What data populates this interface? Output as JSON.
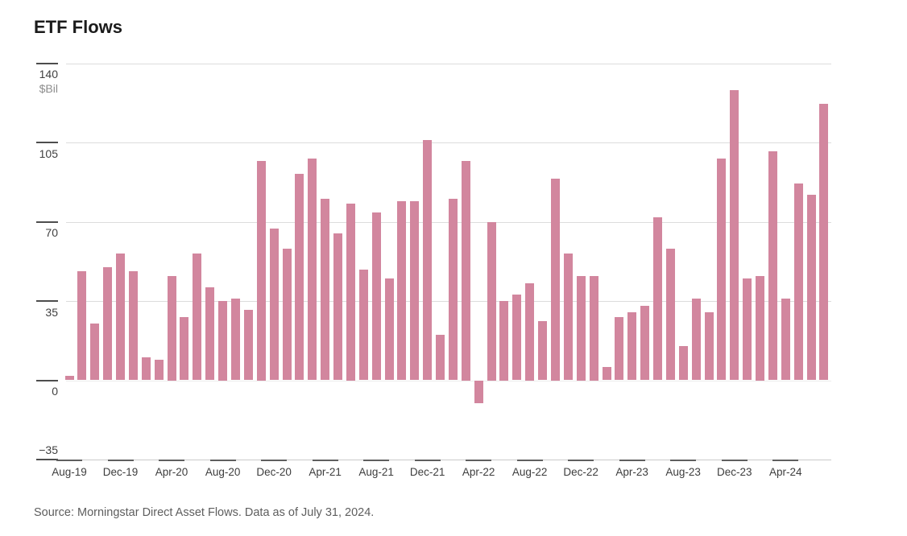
{
  "title": "ETF Flows",
  "source": "Source: Morningstar Direct Asset Flows. Data as of July 31, 2024.",
  "colors": {
    "bar": "#d2869e",
    "gridline": "#dcdcdc",
    "zero_line": "#ededed",
    "axis_tick": "#4d4d4d",
    "x_axis_line": "#c9c9c9",
    "x_axis_dash": "#5f5f5f",
    "title_text": "#1b1b1b",
    "tick_label_text": "#404040",
    "unit_label_text": "#8c8c8c",
    "source_text": "#5e5e5e"
  },
  "y_axis": {
    "unit_label": "$Bil",
    "ticks": [
      140,
      105,
      70,
      35,
      0,
      -35
    ]
  },
  "chart_data": {
    "type": "bar",
    "title": "ETF Flows",
    "xlabel": "",
    "ylabel": "$Bil",
    "ylim": [
      -35,
      140
    ],
    "grid": "horizontal",
    "legend_position": "none",
    "gridline_levels": [
      140,
      105,
      70,
      35
    ],
    "x_tick_every": 4,
    "x_tick_labels": [
      "Aug-19",
      "Dec-19",
      "Apr-20",
      "Aug-20",
      "Dec-20",
      "Apr-21",
      "Aug-21",
      "Dec-21",
      "Apr-22",
      "Aug-22",
      "Dec-22",
      "Apr-23",
      "Aug-23",
      "Dec-23",
      "Apr-24"
    ],
    "categories": [
      "Aug-19",
      "Sep-19",
      "Oct-19",
      "Nov-19",
      "Dec-19",
      "Jan-20",
      "Feb-20",
      "Mar-20",
      "Apr-20",
      "May-20",
      "Jun-20",
      "Jul-20",
      "Aug-20",
      "Sep-20",
      "Oct-20",
      "Nov-20",
      "Dec-20",
      "Jan-21",
      "Feb-21",
      "Mar-21",
      "Apr-21",
      "May-21",
      "Jun-21",
      "Jul-21",
      "Aug-21",
      "Sep-21",
      "Oct-21",
      "Nov-21",
      "Dec-21",
      "Jan-22",
      "Feb-22",
      "Mar-22",
      "Apr-22",
      "May-22",
      "Jun-22",
      "Jul-22",
      "Aug-22",
      "Sep-22",
      "Oct-22",
      "Nov-22",
      "Dec-22",
      "Jan-23",
      "Feb-23",
      "Mar-23",
      "Apr-23",
      "May-23",
      "Jun-23",
      "Jul-23",
      "Aug-23",
      "Sep-23",
      "Oct-23",
      "Nov-23",
      "Dec-23",
      "Jan-24",
      "Feb-24",
      "Mar-24",
      "Apr-24",
      "May-24",
      "Jun-24",
      "Jul-24"
    ],
    "values": [
      2,
      48,
      25,
      50,
      56,
      48,
      10,
      9,
      46,
      28,
      56,
      41,
      35,
      36,
      31,
      97,
      67,
      58,
      91,
      98,
      80,
      65,
      78,
      49,
      74,
      45,
      79,
      79,
      106,
      20,
      80,
      97,
      -10,
      70,
      35,
      38,
      43,
      26,
      89,
      56,
      46,
      46,
      6,
      28,
      30,
      33,
      72,
      58,
      15,
      36,
      30,
      98,
      128,
      45,
      46,
      101,
      36,
      87,
      82,
      122
    ]
  }
}
